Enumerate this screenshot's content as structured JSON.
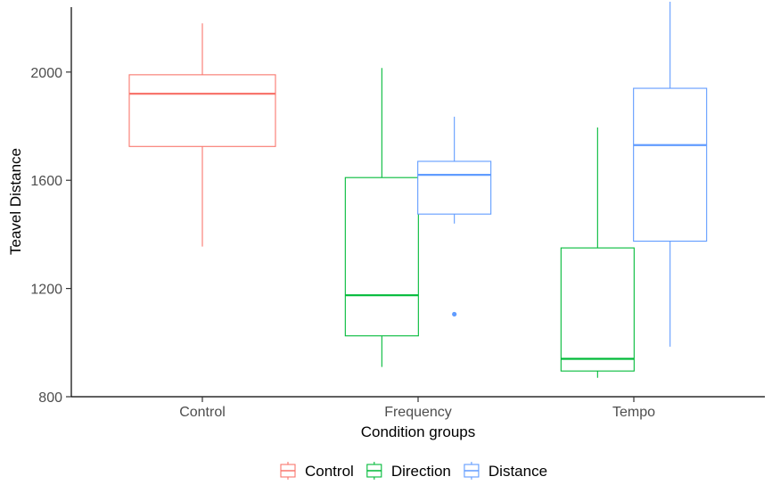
{
  "chart_data": {
    "type": "boxplot",
    "title": "",
    "xlabel": "Condition groups",
    "ylabel": "Teavel Distance",
    "categories": [
      "Control",
      "Frequency",
      "Tempo"
    ],
    "ylim": [
      800,
      2240
    ],
    "yticks": [
      800,
      1200,
      1600,
      2000
    ],
    "grid": false,
    "legend_position": "bottom",
    "series": [
      {
        "name": "Control",
        "color": "#F8766D",
        "boxes": [
          {
            "category": "Control",
            "min": 1355,
            "q1": 1725,
            "median": 1920,
            "q3": 1990,
            "max": 2180,
            "outliers": []
          }
        ]
      },
      {
        "name": "Direction",
        "color": "#00BA38",
        "boxes": [
          {
            "category": "Frequency",
            "min": 910,
            "q1": 1025,
            "median": 1175,
            "q3": 1610,
            "max": 2015,
            "outliers": []
          },
          {
            "category": "Tempo",
            "min": 870,
            "q1": 895,
            "median": 940,
            "q3": 1350,
            "max": 1795,
            "outliers": []
          }
        ]
      },
      {
        "name": "Distance",
        "color": "#619CFF",
        "boxes": [
          {
            "category": "Frequency",
            "min": 1440,
            "q1": 1475,
            "median": 1620,
            "q3": 1670,
            "max": 1835,
            "outliers": [
              1105
            ]
          },
          {
            "category": "Tempo",
            "min": 985,
            "q1": 1375,
            "median": 1730,
            "q3": 1940,
            "max": 2260,
            "outliers": []
          }
        ]
      }
    ]
  }
}
